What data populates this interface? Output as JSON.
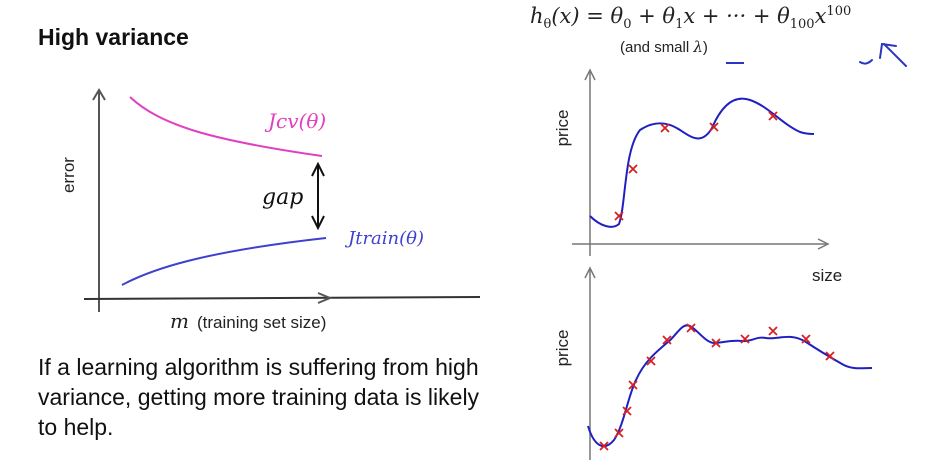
{
  "slide": {
    "title": "High variance",
    "note": "If a learning algorithm is suffering from high variance, getting more training data is likely to help."
  },
  "formula": {
    "lambda_note_prefix": "(and small ",
    "lambda_symbol": "λ",
    "lambda_note_suffix": ")"
  },
  "learning_curve": {
    "ylabel": "error",
    "xlabel_m": "m",
    "xlabel_rest": "(training set size)",
    "cv_label": "Jcv(θ)",
    "train_label": "Jtrain(θ)",
    "gap_label": "gap",
    "colors": {
      "cv": "#e040c0",
      "train": "#4040d0"
    }
  },
  "plots": {
    "top": {
      "ylabel": "price",
      "xlabel": "size"
    },
    "bottom": {
      "ylabel": "price"
    },
    "colors": {
      "curve": "#2020c0",
      "marker": "#d82020"
    }
  }
}
